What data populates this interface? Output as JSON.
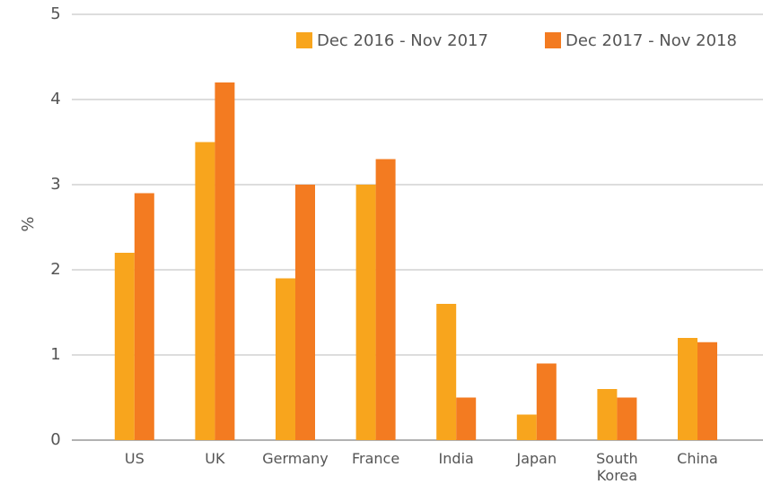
{
  "chart_data": {
    "type": "bar",
    "y_label": "%",
    "categories": [
      "US",
      "UK",
      "Germany",
      "France",
      "India",
      "Japan",
      "South Korea",
      "China"
    ],
    "series": [
      {
        "name": "Dec 2016 - Nov 2017",
        "color": "#f8a51d",
        "values": [
          2.2,
          3.5,
          1.9,
          3.0,
          1.6,
          0.3,
          0.6,
          1.2
        ]
      },
      {
        "name": "Dec 2017 - Nov 2018",
        "color": "#f37b21",
        "values": [
          2.9,
          4.2,
          3.0,
          3.3,
          0.5,
          0.9,
          0.5,
          1.15
        ]
      }
    ],
    "ylim": [
      0,
      5
    ],
    "yticks": [
      0,
      1,
      2,
      3,
      4,
      5
    ],
    "grid": true,
    "legend": "top-right"
  }
}
